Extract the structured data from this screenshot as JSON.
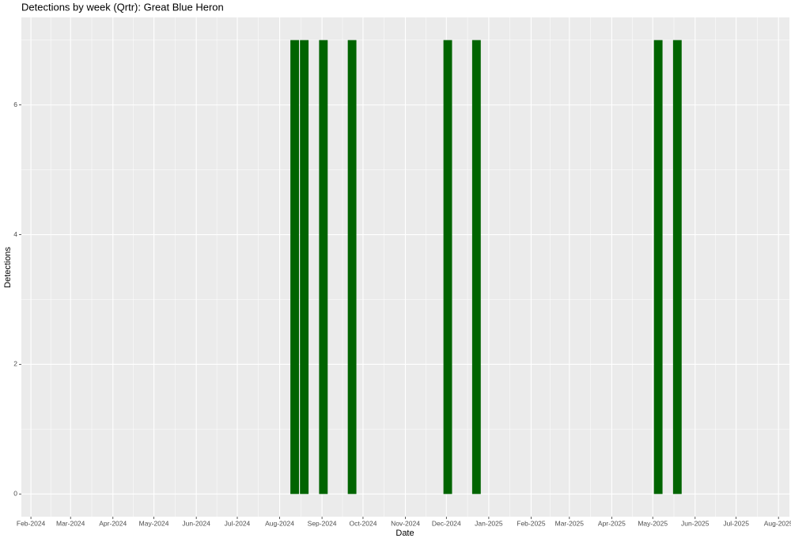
{
  "chart_data": {
    "type": "bar",
    "title": "Detections by week (Qrtr): Great Blue Heron",
    "x_label": "Date",
    "y_label": "Detections",
    "x": [
      "2024-08-12",
      "2024-08-19",
      "2024-09-02",
      "2024-09-23",
      "2024-12-02",
      "2024-12-23",
      "2025-05-05",
      "2025-05-19"
    ],
    "values": [
      7,
      7,
      7,
      7,
      7,
      7,
      7,
      7
    ],
    "color": "#006400",
    "xlim": [
      "2024-01-25",
      "2025-08-09"
    ],
    "xticks": [
      {
        "value": "2024-02-01",
        "label": "Feb-2024"
      },
      {
        "value": "2024-03-01",
        "label": "Mar-2024"
      },
      {
        "value": "2024-04-01",
        "label": "Apr-2024"
      },
      {
        "value": "2024-05-01",
        "label": "May-2024"
      },
      {
        "value": "2024-06-01",
        "label": "Jun-2024"
      },
      {
        "value": "2024-07-01",
        "label": "Jul-2024"
      },
      {
        "value": "2024-08-01",
        "label": "Aug-2024"
      },
      {
        "value": "2024-09-01",
        "label": "Sep-2024"
      },
      {
        "value": "2024-10-01",
        "label": "Oct-2024"
      },
      {
        "value": "2024-11-01",
        "label": "Nov-2024"
      },
      {
        "value": "2024-12-01",
        "label": "Dec-2024"
      },
      {
        "value": "2025-01-01",
        "label": "Jan-2025"
      },
      {
        "value": "2025-02-01",
        "label": "Feb-2025"
      },
      {
        "value": "2025-03-01",
        "label": "Mar-2025"
      },
      {
        "value": "2025-04-01",
        "label": "Apr-2025"
      },
      {
        "value": "2025-05-01",
        "label": "May-2025"
      },
      {
        "value": "2025-06-01",
        "label": "Jun-2025"
      },
      {
        "value": "2025-07-01",
        "label": "Jul-2025"
      },
      {
        "value": "2025-08-01",
        "label": "Aug-2025"
      }
    ],
    "ylim": [
      -0.35,
      7.35
    ],
    "yticks": [
      0,
      2,
      4,
      6
    ],
    "grid": true
  }
}
